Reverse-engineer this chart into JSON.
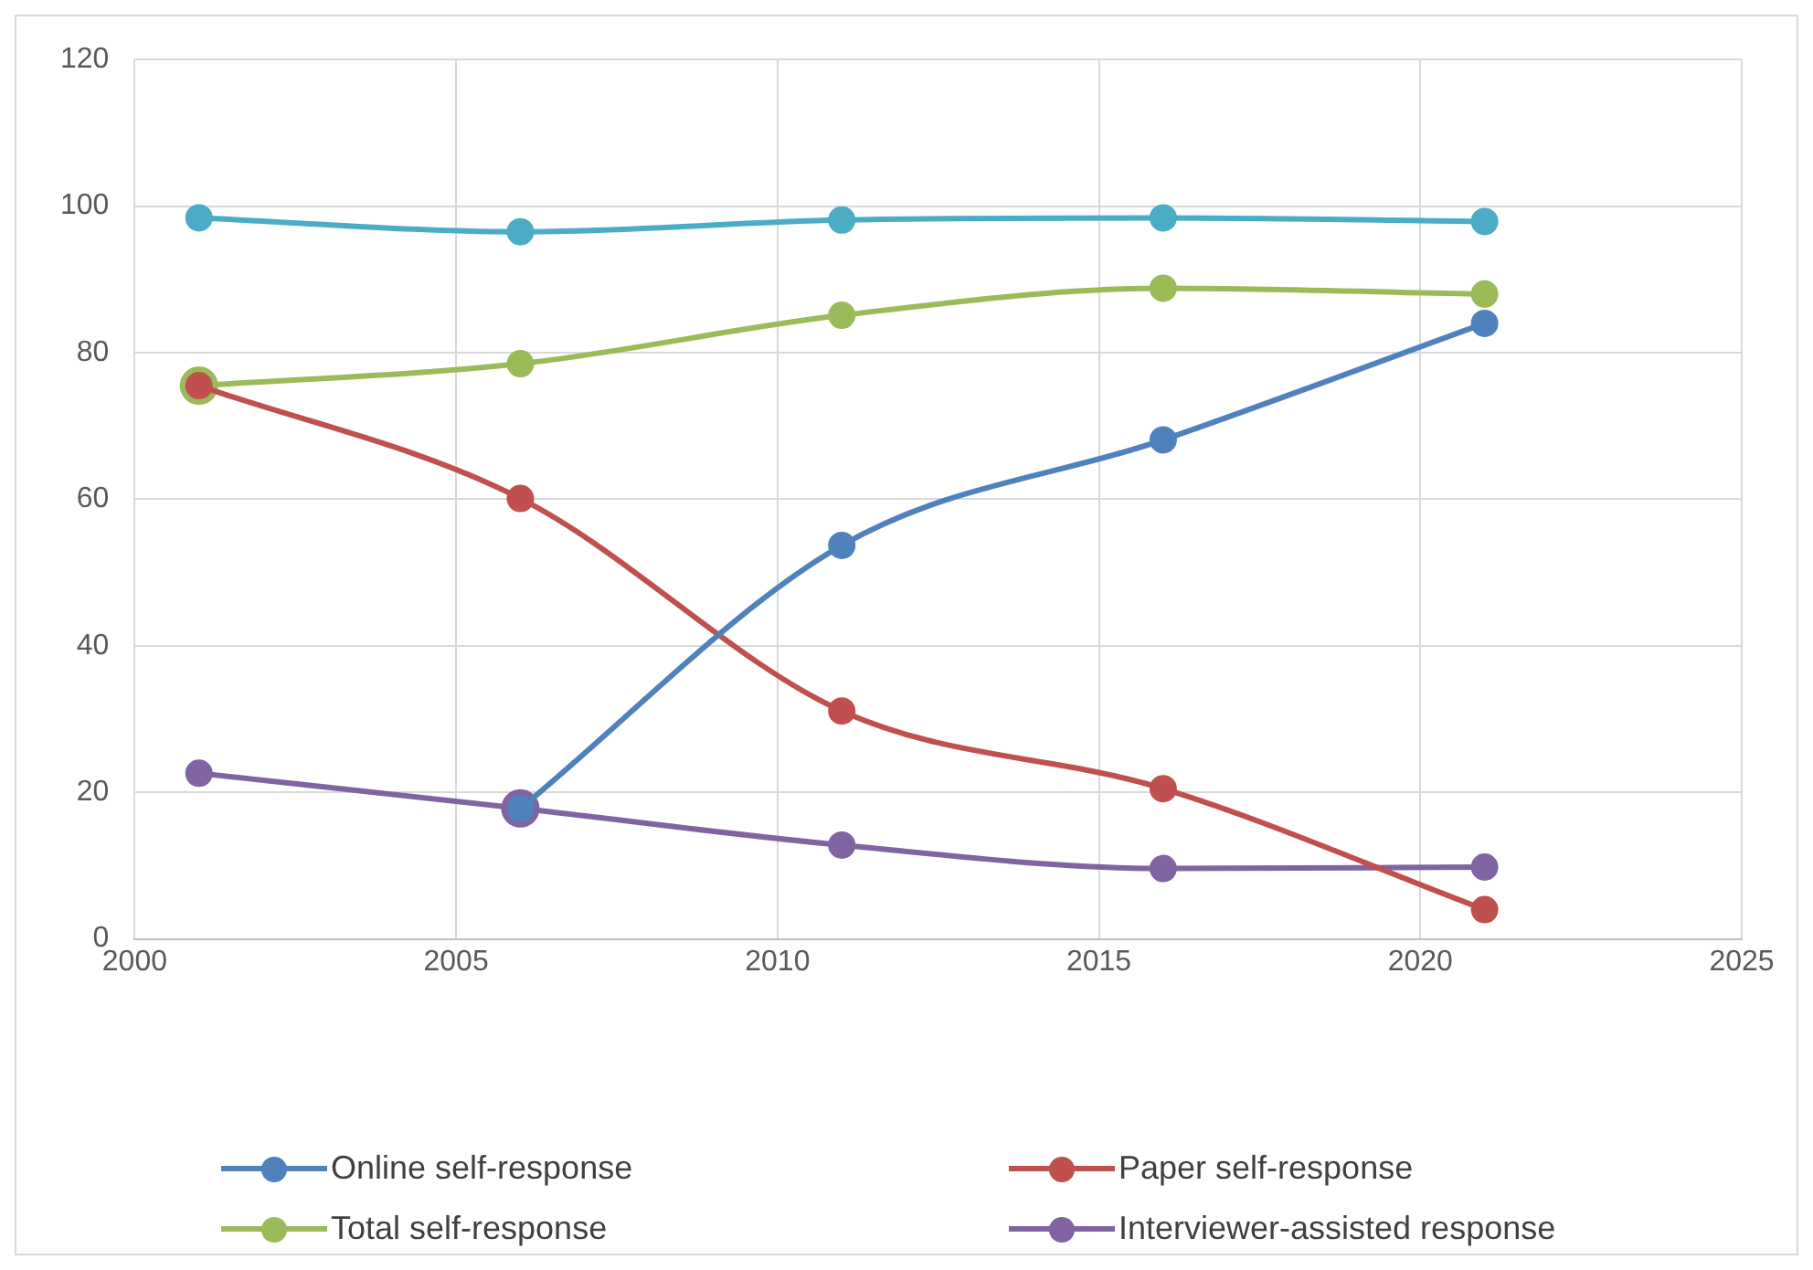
{
  "chart_data": {
    "type": "line",
    "x": [
      2001,
      2006,
      2011,
      2016,
      2021
    ],
    "xlim": [
      2000,
      2025
    ],
    "xticks": [
      2000,
      2005,
      2010,
      2015,
      2020,
      2025
    ],
    "ylim": [
      0,
      120
    ],
    "yticks": [
      0,
      20,
      40,
      60,
      80,
      100,
      120
    ],
    "grid": true,
    "legend": "bottom",
    "marker": "circle",
    "line_style": "solid",
    "series": [
      {
        "color": "#4bacc6",
        "values": [
          98.4,
          96.5,
          98.1,
          98.4,
          97.9
        ]
      },
      {
        "name": "Online self-response",
        "color": "#4f81bd",
        "values": [
          null,
          17.8,
          53.7,
          68.1,
          84.0
        ]
      },
      {
        "name": "Paper self-response",
        "color": "#c0504d",
        "values": [
          75.5,
          60.1,
          31.1,
          20.5,
          4.0
        ]
      },
      {
        "name": "Total self-response",
        "color": "#9bbb59",
        "values": [
          75.5,
          78.5,
          85.1,
          88.8,
          88.0
        ]
      },
      {
        "name": "Interviewer-assisted response",
        "color": "#8064a2",
        "values": [
          22.6,
          17.8,
          12.8,
          9.6,
          9.8
        ]
      }
    ]
  }
}
